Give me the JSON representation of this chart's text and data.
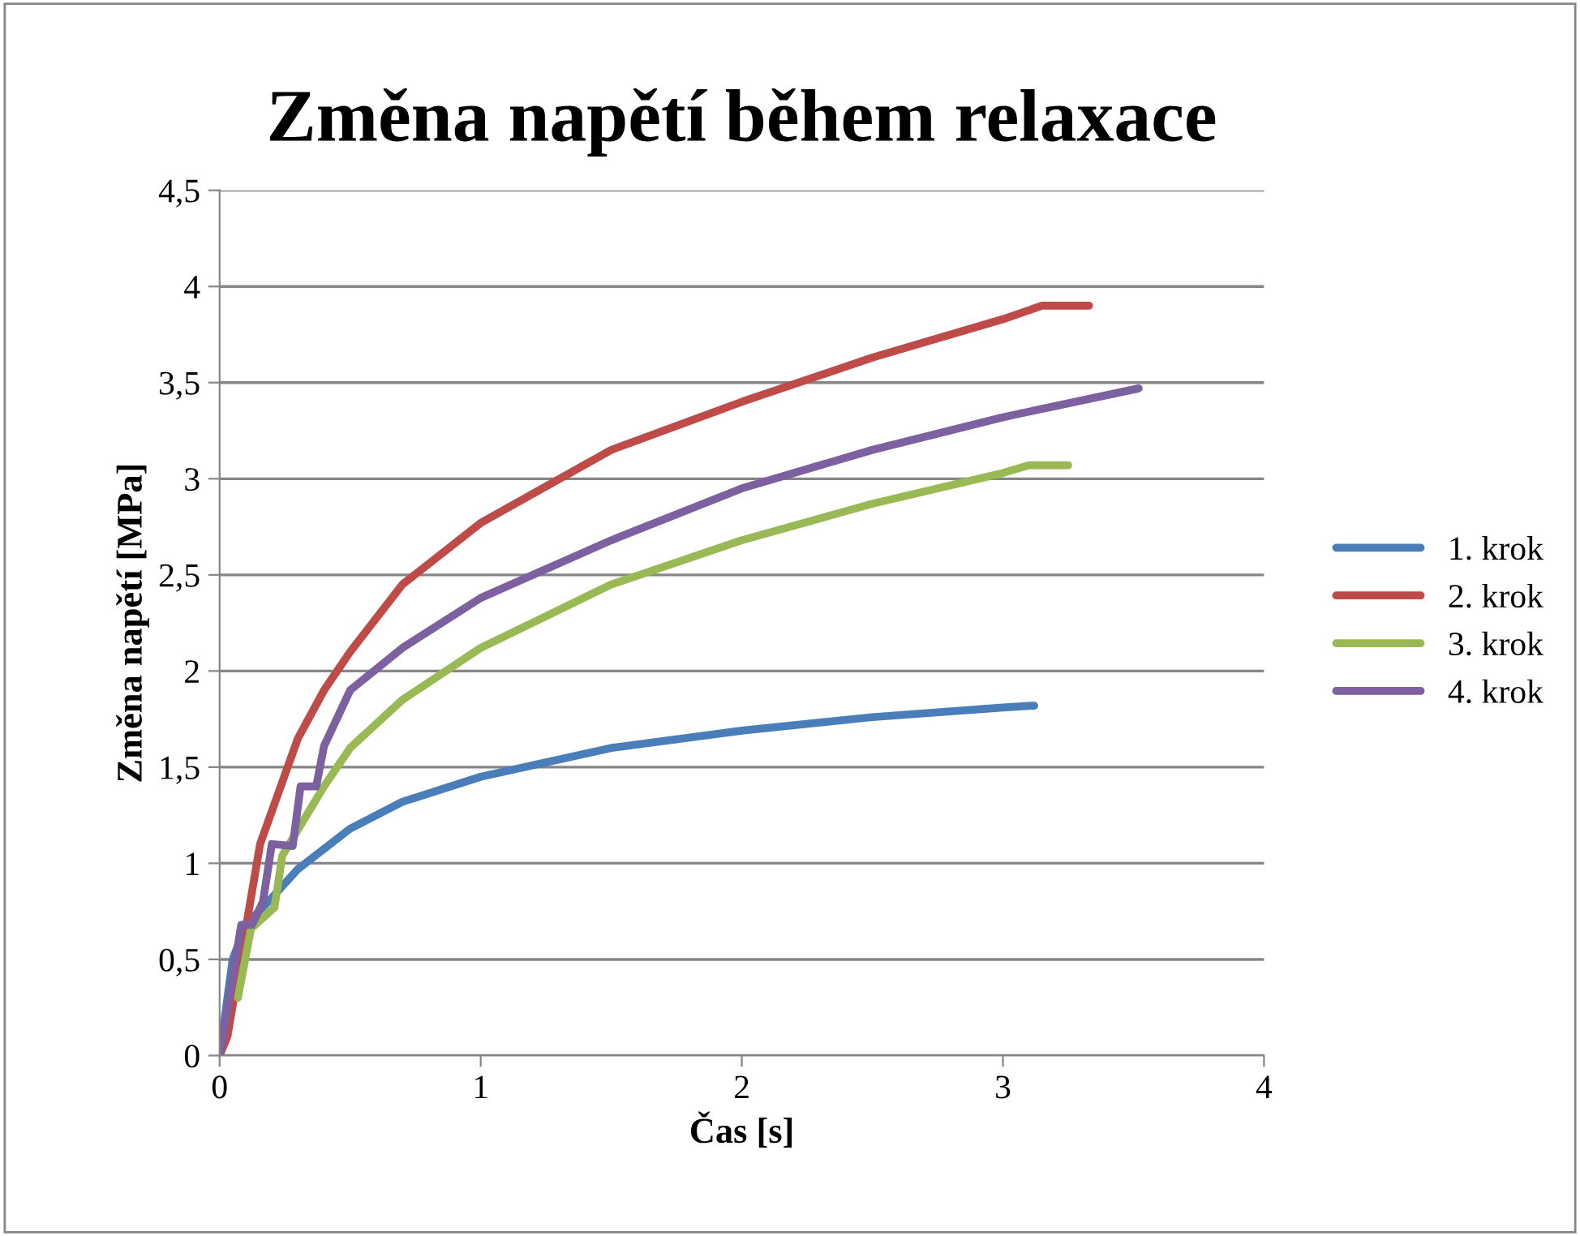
{
  "chart_data": {
    "type": "line",
    "title": "Změna napětí během relaxace",
    "xlabel": "Čas [s]",
    "ylabel": "Změna napětí [MPa]",
    "xlim": [
      0,
      4
    ],
    "xticks": [
      0,
      1,
      2,
      3,
      4
    ],
    "ylim": [
      0,
      4.5
    ],
    "yticks": [
      0,
      {
        "value": 0.5,
        "label": "0,5"
      },
      1,
      {
        "value": 1.5,
        "label": "1,5"
      },
      2,
      {
        "value": 2.5,
        "label": "2,5"
      },
      3,
      {
        "value": 3.5,
        "label": "3,5"
      },
      4,
      {
        "value": 4.5,
        "label": "4,5"
      }
    ],
    "grid": "y",
    "legend": "right",
    "marker": "none",
    "line_style": "solid",
    "series": [
      {
        "name": "1. krok",
        "color": "#4a7ebb",
        "x": [
          0,
          0.05,
          0.1,
          0.2,
          0.3,
          0.5,
          0.7,
          1.0,
          1.5,
          2.0,
          2.5,
          3.0,
          3.12
        ],
        "values": [
          0,
          0.5,
          0.68,
          0.82,
          0.97,
          1.18,
          1.32,
          1.45,
          1.6,
          1.69,
          1.76,
          1.81,
          1.82
        ]
      },
      {
        "name": "2. krok",
        "color": "#be4b48",
        "x": [
          0,
          0.03,
          0.155,
          0.3,
          0.4,
          0.5,
          0.7,
          1.0,
          1.5,
          2.0,
          2.5,
          3.0,
          3.15,
          3.33
        ],
        "values": [
          0,
          0.1,
          1.1,
          1.65,
          1.9,
          2.1,
          2.45,
          2.77,
          3.15,
          3.4,
          3.63,
          3.83,
          3.9,
          3.9
        ]
      },
      {
        "name": "3. krok",
        "color": "#98b954",
        "x": [
          0.07,
          0.12,
          0.21,
          0.24,
          0.4,
          0.5,
          0.7,
          1.0,
          1.5,
          2.0,
          2.5,
          3.0,
          3.1,
          3.25
        ],
        "values": [
          0.3,
          0.66,
          0.77,
          1.04,
          1.4,
          1.6,
          1.85,
          2.12,
          2.45,
          2.68,
          2.87,
          3.03,
          3.07,
          3.07
        ]
      },
      {
        "name": "4. krok",
        "color": "#7d60a0",
        "x": [
          0,
          0.083,
          0.124,
          0.166,
          0.2,
          0.28,
          0.31,
          0.37,
          0.4,
          0.5,
          0.7,
          1.0,
          1.5,
          2.0,
          2.5,
          3.0,
          3.52
        ],
        "values": [
          0,
          0.68,
          0.68,
          0.8,
          1.1,
          1.09,
          1.4,
          1.4,
          1.61,
          1.9,
          2.12,
          2.38,
          2.68,
          2.95,
          3.15,
          3.32,
          3.47
        ]
      }
    ]
  }
}
